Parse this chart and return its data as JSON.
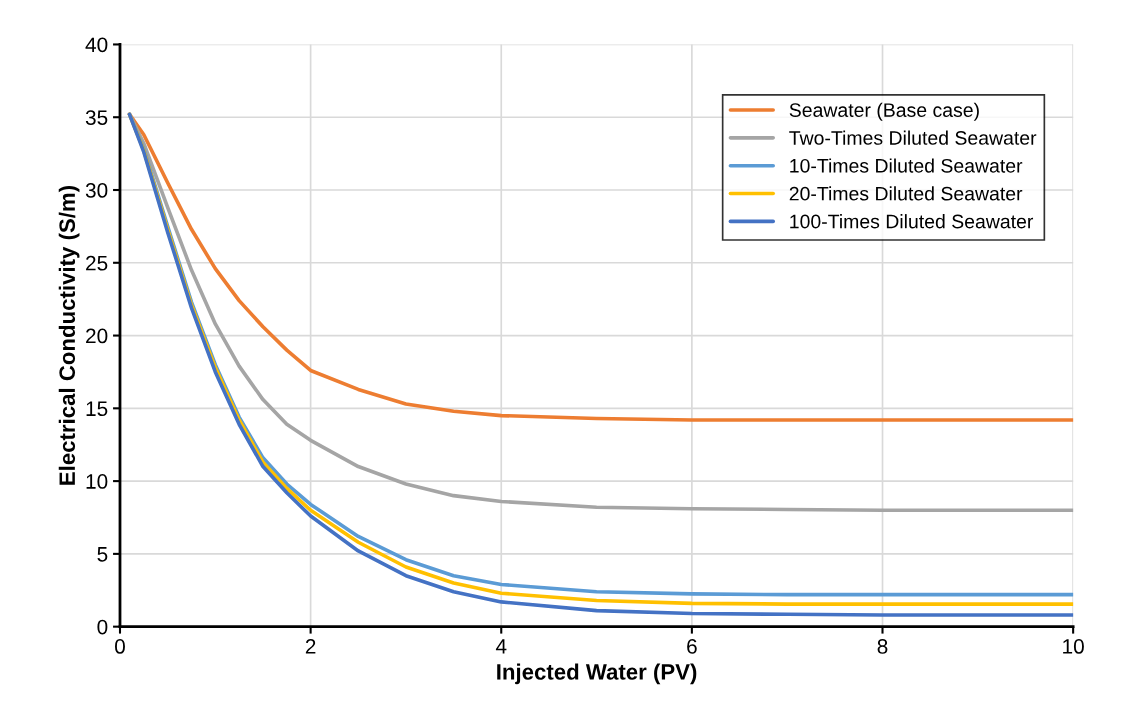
{
  "chart_data": {
    "type": "line",
    "xlabel": "Injected Water (PV)",
    "ylabel": "Electrical Conductivity (S/m)",
    "x": [
      0.1,
      0.25,
      0.5,
      0.75,
      1,
      1.25,
      1.5,
      1.75,
      2,
      2.5,
      3,
      3.5,
      4,
      5,
      6,
      7,
      8,
      9,
      10
    ],
    "series": [
      {
        "name": "Seawater (Base case)",
        "color": "#ed7d31",
        "values": [
          35.2,
          33.8,
          30.5,
          27.3,
          24.6,
          22.4,
          20.6,
          19.0,
          17.6,
          16.3,
          15.3,
          14.8,
          14.5,
          14.3,
          14.2,
          14.2,
          14.2,
          14.2,
          14.2
        ]
      },
      {
        "name": "Two-Times Diluted Seawater",
        "color": "#a5a5a5",
        "values": [
          35.2,
          33.2,
          28.8,
          24.5,
          20.8,
          17.9,
          15.6,
          13.9,
          12.8,
          11.0,
          9.8,
          9.0,
          8.6,
          8.2,
          8.1,
          8.05,
          8.0,
          8.0,
          8.0
        ]
      },
      {
        "name": "10-Times Diluted Seawater",
        "color": "#5b9bd5",
        "values": [
          35.2,
          32.8,
          27.5,
          22.3,
          18.0,
          14.4,
          11.6,
          9.8,
          8.4,
          6.2,
          4.6,
          3.5,
          2.9,
          2.4,
          2.25,
          2.2,
          2.2,
          2.2,
          2.2
        ]
      },
      {
        "name": "20-Times Diluted Seawater",
        "color": "#ffc000",
        "values": [
          35.2,
          32.7,
          27.3,
          22.1,
          17.8,
          14.2,
          11.3,
          9.5,
          8.0,
          5.8,
          4.1,
          3.0,
          2.3,
          1.8,
          1.6,
          1.55,
          1.55,
          1.55,
          1.55
        ]
      },
      {
        "name": "100-Times Diluted Seawater",
        "color": "#4472c4",
        "values": [
          35.2,
          32.6,
          27.1,
          21.9,
          17.5,
          13.9,
          11.0,
          9.2,
          7.6,
          5.2,
          3.5,
          2.4,
          1.7,
          1.1,
          0.9,
          0.85,
          0.8,
          0.8,
          0.8
        ]
      }
    ],
    "xlim": [
      0,
      10
    ],
    "xticks": [
      0,
      2,
      4,
      6,
      8,
      10
    ],
    "ylim": [
      0,
      40
    ],
    "yticks": [
      0,
      5,
      10,
      15,
      20,
      25,
      30,
      35,
      40
    ],
    "grid": true,
    "legend": "top right",
    "marker": "none",
    "line_style": "solid"
  }
}
